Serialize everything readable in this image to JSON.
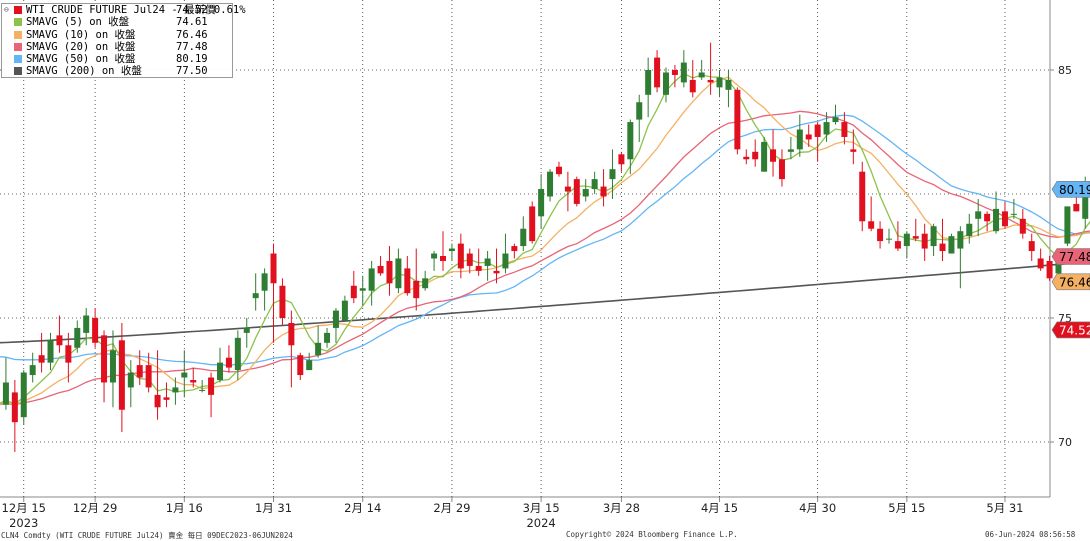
{
  "colors": {
    "up": "#2e7d32",
    "down": "#e0101e",
    "sma5": "#8bc34a",
    "sma10": "#f5b163",
    "sma20": "#e86476",
    "sma50": "#64b5f6",
    "sma200": "#555555",
    "grid": "#333333",
    "axis_text": "#222222"
  },
  "legend": [
    {
      "name": "WTI CRUDE FUTURE  Jul24 - 最新價",
      "value": "74.52  0.61%",
      "color": "#e0101e"
    },
    {
      "name": "SMAVG (5)  on 收盤",
      "value": "74.61",
      "color": "#8bc34a"
    },
    {
      "name": "SMAVG (10)  on 收盤",
      "value": "76.46",
      "color": "#f5b163"
    },
    {
      "name": "SMAVG (20)  on 收盤",
      "value": "77.48",
      "color": "#e86476"
    },
    {
      "name": "SMAVG (50)  on 收盤",
      "value": "80.19",
      "color": "#64b5f6"
    },
    {
      "name": "SMAVG (200)  on 收盤",
      "value": "77.50",
      "color": "#555555"
    }
  ],
  "footer": {
    "left": "CLN4 Comdty (WTI CRUDE FUTURE  Jul24) 賣金  每日 09DEC2023-06JUN2024",
    "center": "Copyright© 2024 Bloomberg Finance L.P.",
    "right": "06-Jun-2024 08:56:58"
  },
  "chart_data": {
    "type": "candlestick",
    "y_ticks": [
      "85",
      "75",
      "70"
    ],
    "ylim": [
      67.5,
      88.5
    ],
    "x_tick_labels": [
      "12月 15",
      "12月 29",
      "1月 16",
      "1月 31",
      "2月 14",
      "2月 29",
      "3月 15",
      "3月 28",
      "4月 15",
      "4月 30",
      "5月 15",
      "5月 31"
    ],
    "x_tick_index": [
      3,
      11,
      21,
      31,
      41,
      51,
      61,
      70,
      81,
      92,
      102,
      113
    ],
    "year_labels": [
      {
        "text": "2023",
        "index": 3
      },
      {
        "text": "2024",
        "index": 61
      }
    ],
    "value_tags": [
      {
        "value": 80.19,
        "label": "80.19",
        "bg": "#64b5f6",
        "fg": "#000000"
      },
      {
        "value": 77.48,
        "label": "77.48",
        "bg": "#e86476",
        "fg": "#000000"
      },
      {
        "value": 76.46,
        "label": "76.46",
        "bg": "#f5b163",
        "fg": "#000000"
      },
      {
        "value": 74.52,
        "label": "74.52",
        "bg": "#e0101e",
        "fg": "#ffffff"
      }
    ],
    "ohlc": [
      [
        72.4,
        73.1,
        71.0,
        71.5
      ],
      [
        71.5,
        73.4,
        71.3,
        72.4
      ],
      [
        72.0,
        72.5,
        69.6,
        70.8
      ],
      [
        71.0,
        72.9,
        70.7,
        72.8
      ],
      [
        72.7,
        73.6,
        72.4,
        73.1
      ],
      [
        73.5,
        74.4,
        72.8,
        73.2
      ],
      [
        73.2,
        74.4,
        72.9,
        74.1
      ],
      [
        74.3,
        75.1,
        73.6,
        73.9
      ],
      [
        73.9,
        74.4,
        72.4,
        73.2
      ],
      [
        73.8,
        74.9,
        73.6,
        74.6
      ],
      [
        74.4,
        75.4,
        73.9,
        75.1
      ],
      [
        75.0,
        75.4,
        73.8,
        74.0
      ],
      [
        74.3,
        74.5,
        71.6,
        72.4
      ],
      [
        72.4,
        74.5,
        71.4,
        73.7
      ],
      [
        74.1,
        74.8,
        70.4,
        71.3
      ],
      [
        72.2,
        73.3,
        71.4,
        72.8
      ],
      [
        73.1,
        73.7,
        72.3,
        72.6
      ],
      [
        73.1,
        73.6,
        72.0,
        72.2
      ],
      [
        71.9,
        73.7,
        70.9,
        71.4
      ],
      [
        71.8,
        72.4,
        71.4,
        71.7
      ],
      [
        72.0,
        72.6,
        71.5,
        72.2
      ],
      [
        72.6,
        73.7,
        71.8,
        72.8
      ],
      [
        72.5,
        73.0,
        72.2,
        72.4
      ],
      [
        72.1,
        72.5,
        72.0,
        72.1
      ],
      [
        72.6,
        72.8,
        71.0,
        71.9
      ],
      [
        72.5,
        73.8,
        72.4,
        73.2
      ],
      [
        73.4,
        73.9,
        72.8,
        73.0
      ],
      [
        72.9,
        74.5,
        72.5,
        74.2
      ],
      [
        74.4,
        75.0,
        73.8,
        74.6
      ],
      [
        75.8,
        76.8,
        75.3,
        76.0
      ],
      [
        76.1,
        77.0,
        75.3,
        76.8
      ],
      [
        77.6,
        78.0,
        74.0,
        76.4
      ],
      [
        76.3,
        76.6,
        74.7,
        75.0
      ],
      [
        74.8,
        75.3,
        72.2,
        73.9
      ],
      [
        73.5,
        73.6,
        72.5,
        72.7
      ],
      [
        72.9,
        73.6,
        72.9,
        73.3
      ],
      [
        73.5,
        74.7,
        73.4,
        74.0
      ],
      [
        74.0,
        74.6,
        73.8,
        74.4
      ],
      [
        74.6,
        75.4,
        74.0,
        75.3
      ],
      [
        74.9,
        75.9,
        74.9,
        75.7
      ],
      [
        76.3,
        76.9,
        75.6,
        75.8
      ],
      [
        76.1,
        76.7,
        75.5,
        76.2
      ],
      [
        76.1,
        77.3,
        75.5,
        77.0
      ],
      [
        77.1,
        77.5,
        76.7,
        76.8
      ],
      [
        77.3,
        77.9,
        75.9,
        76.4
      ],
      [
        76.2,
        77.8,
        76.0,
        77.4
      ],
      [
        77.0,
        77.5,
        75.9,
        76.0
      ],
      [
        76.5,
        77.8,
        75.3,
        75.8
      ],
      [
        76.2,
        76.9,
        76.1,
        76.6
      ],
      [
        77.4,
        77.7,
        76.9,
        77.6
      ],
      [
        77.5,
        78.5,
        76.9,
        77.3
      ],
      [
        77.7,
        78.0,
        77.3,
        77.8
      ],
      [
        78.0,
        78.4,
        76.6,
        77.0
      ],
      [
        77.6,
        77.8,
        76.8,
        77.1
      ],
      [
        77.1,
        77.8,
        76.7,
        76.9
      ],
      [
        77.1,
        77.7,
        76.5,
        77.4
      ],
      [
        76.9,
        77.8,
        76.4,
        76.8
      ],
      [
        77.0,
        78.4,
        76.8,
        77.6
      ],
      [
        77.9,
        78.0,
        77.4,
        77.7
      ],
      [
        77.9,
        79.1,
        77.7,
        78.6
      ],
      [
        79.5,
        79.7,
        78.0,
        78.1
      ],
      [
        79.1,
        80.8,
        78.6,
        80.2
      ],
      [
        79.9,
        81.0,
        79.7,
        80.9
      ],
      [
        81.1,
        81.3,
        80.7,
        80.8
      ],
      [
        80.3,
        80.9,
        79.3,
        80.1
      ],
      [
        80.6,
        80.7,
        79.5,
        79.6
      ],
      [
        79.9,
        80.6,
        79.7,
        80.2
      ],
      [
        80.2,
        80.9,
        80.0,
        80.6
      ],
      [
        80.3,
        81.0,
        79.5,
        79.9
      ],
      [
        80.6,
        81.8,
        79.8,
        81.0
      ],
      [
        81.6,
        81.7,
        80.9,
        81.2
      ],
      [
        81.4,
        83.0,
        80.8,
        82.9
      ],
      [
        83.0,
        84.0,
        82.1,
        83.7
      ],
      [
        84.0,
        85.5,
        83.1,
        85.0
      ],
      [
        85.5,
        85.8,
        84.1,
        84.3
      ],
      [
        84.0,
        85.1,
        83.7,
        84.9
      ],
      [
        85.0,
        85.2,
        84.3,
        84.8
      ],
      [
        84.5,
        85.8,
        84.3,
        85.3
      ],
      [
        84.6,
        85.4,
        83.9,
        84.1
      ],
      [
        84.7,
        85.4,
        84.6,
        84.9
      ],
      [
        84.6,
        86.1,
        84.0,
        84.5
      ],
      [
        84.3,
        85.0,
        83.9,
        84.7
      ],
      [
        84.2,
        85.0,
        83.5,
        84.6
      ],
      [
        84.2,
        84.3,
        81.6,
        81.8
      ],
      [
        81.5,
        81.8,
        81.2,
        81.4
      ],
      [
        81.7,
        82.2,
        81.1,
        81.4
      ],
      [
        80.9,
        82.3,
        80.9,
        82.1
      ],
      [
        81.8,
        82.6,
        80.7,
        81.3
      ],
      [
        81.4,
        81.8,
        80.3,
        80.6
      ],
      [
        81.7,
        82.3,
        81.4,
        81.8
      ],
      [
        81.8,
        83.2,
        81.5,
        82.6
      ],
      [
        82.4,
        82.8,
        81.9,
        82.2
      ],
      [
        82.8,
        82.9,
        81.3,
        82.3
      ],
      [
        82.4,
        83.3,
        82.1,
        82.9
      ],
      [
        82.9,
        83.6,
        82.8,
        83.1
      ],
      [
        82.9,
        83.3,
        82.0,
        82.3
      ],
      [
        81.8,
        82.6,
        81.2,
        81.7
      ],
      [
        80.9,
        81.3,
        78.5,
        78.9
      ],
      [
        78.9,
        79.9,
        78.5,
        78.6
      ],
      [
        78.6,
        78.9,
        77.8,
        78.1
      ],
      [
        78.2,
        78.6,
        78.0,
        78.2
      ],
      [
        78.1,
        78.9,
        77.7,
        77.8
      ],
      [
        77.9,
        78.5,
        77.4,
        78.4
      ],
      [
        78.3,
        79.0,
        78.1,
        78.2
      ],
      [
        78.4,
        78.8,
        77.3,
        77.8
      ],
      [
        77.9,
        78.8,
        77.5,
        78.7
      ],
      [
        78.0,
        79.0,
        77.3,
        77.7
      ],
      [
        77.6,
        78.4,
        77.6,
        78.3
      ],
      [
        77.8,
        78.7,
        76.2,
        78.5
      ],
      [
        78.3,
        79.2,
        78.0,
        78.8
      ],
      [
        79.0,
        79.8,
        78.3,
        79.3
      ],
      [
        79.2,
        79.3,
        78.5,
        78.9
      ],
      [
        78.5,
        80.1,
        78.4,
        79.4
      ],
      [
        79.3,
        79.7,
        78.6,
        78.7
      ],
      [
        79.2,
        79.8,
        79.0,
        79.2
      ],
      [
        79.0,
        79.4,
        78.2,
        78.4
      ],
      [
        78.1,
        78.4,
        77.3,
        77.7
      ],
      [
        77.4,
        77.8,
        76.9,
        77.0
      ],
      [
        77.3,
        77.5,
        76.5,
        76.6
      ],
      [
        76.8,
        77.6,
        76.7,
        77.5
      ],
      [
        78.0,
        79.5,
        77.9,
        79.5
      ],
      [
        79.6,
        80.3,
        79.3,
        79.3
      ],
      [
        79.0,
        80.7,
        78.6,
        80.2
      ],
      [
        80.0,
        80.2,
        78.9,
        79.0
      ],
      [
        78.3,
        78.8,
        76.9,
        78.1
      ],
      [
        77.2,
        78.2,
        76.8,
        77.6
      ],
      [
        76.9,
        77.7,
        76.3,
        76.5
      ],
      [
        76.2,
        77.2,
        73.5,
        74.1
      ],
      [
        74.2,
        74.5,
        73.2,
        73.4
      ],
      [
        74.1,
        74.3,
        72.9,
        73.1
      ],
      [
        74.4,
        74.5,
        74.1,
        74.5
      ]
    ]
  }
}
